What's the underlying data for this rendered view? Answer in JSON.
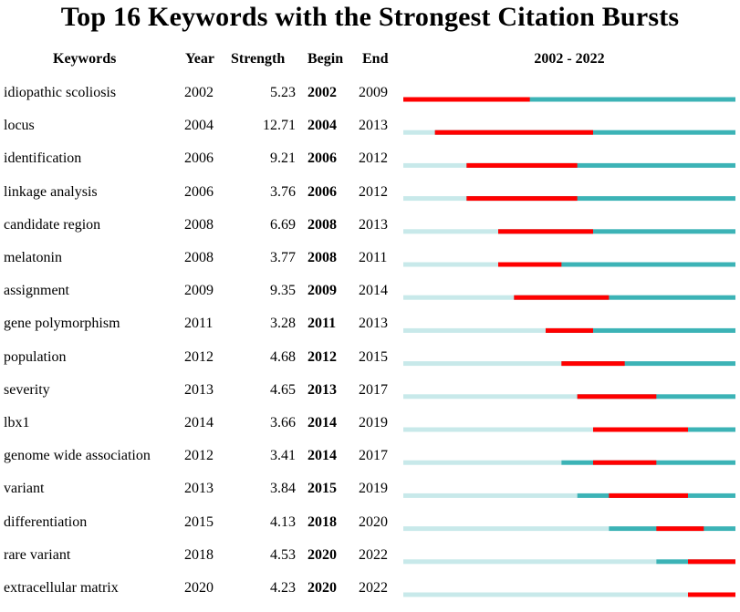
{
  "chart_data": {
    "type": "table",
    "title": "Top 16 Keywords with the Strongest Citation Bursts",
    "columns": [
      "Keywords",
      "Year",
      "Strength",
      "Begin",
      "End",
      "2002 - 2022"
    ],
    "range": [
      2002,
      2022
    ],
    "colors": {
      "burst": "#ff0000",
      "active": "#3cb3b6",
      "inactive": "#c8e9ea"
    },
    "rows": [
      {
        "keyword": "idiopathic scoliosis",
        "year": "2002",
        "strength": "5.23",
        "begin": "2002",
        "end": "2009"
      },
      {
        "keyword": "locus",
        "year": "2004",
        "strength": "12.71",
        "begin": "2004",
        "end": "2013"
      },
      {
        "keyword": "identification",
        "year": "2006",
        "strength": "9.21",
        "begin": "2006",
        "end": "2012"
      },
      {
        "keyword": "linkage analysis",
        "year": "2006",
        "strength": "3.76",
        "begin": "2006",
        "end": "2012"
      },
      {
        "keyword": "candidate region",
        "year": "2008",
        "strength": "6.69",
        "begin": "2008",
        "end": "2013"
      },
      {
        "keyword": "melatonin",
        "year": "2008",
        "strength": "3.77",
        "begin": "2008",
        "end": "2011"
      },
      {
        "keyword": "assignment",
        "year": "2009",
        "strength": "9.35",
        "begin": "2009",
        "end": "2014"
      },
      {
        "keyword": "gene polymorphism",
        "year": "2011",
        "strength": "3.28",
        "begin": "2011",
        "end": "2013"
      },
      {
        "keyword": "population",
        "year": "2012",
        "strength": "4.68",
        "begin": "2012",
        "end": "2015"
      },
      {
        "keyword": "severity",
        "year": "2013",
        "strength": "4.65",
        "begin": "2013",
        "end": "2017"
      },
      {
        "keyword": "lbx1",
        "year": "2014",
        "strength": "3.66",
        "begin": "2014",
        "end": "2019"
      },
      {
        "keyword": "genome wide association",
        "year": "2012",
        "strength": "3.41",
        "begin": "2014",
        "end": "2017"
      },
      {
        "keyword": "variant",
        "year": "2013",
        "strength": "3.84",
        "begin": "2015",
        "end": "2019"
      },
      {
        "keyword": "differentiation",
        "year": "2015",
        "strength": "4.13",
        "begin": "2018",
        "end": "2020"
      },
      {
        "keyword": "rare variant",
        "year": "2018",
        "strength": "4.53",
        "begin": "2020",
        "end": "2022"
      },
      {
        "keyword": "extracellular matrix",
        "year": "2020",
        "strength": "4.23",
        "begin": "2020",
        "end": "2022"
      }
    ]
  }
}
